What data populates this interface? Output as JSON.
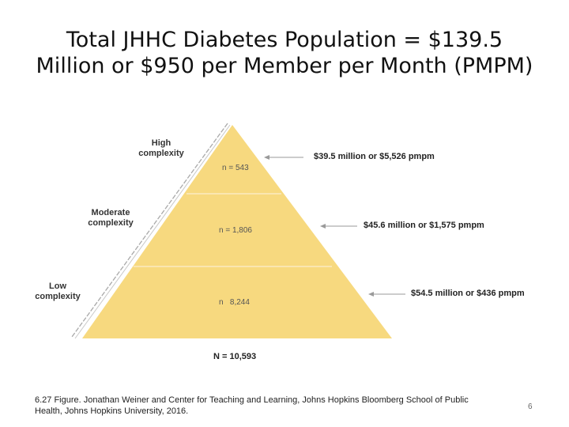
{
  "title": {
    "line1": "Total JHHC Diabetes Population = $139.5",
    "line2": "Million or $950 per Member per Month (PMPM)"
  },
  "tiers": [
    {
      "label_line1": "High",
      "label_line2": "complexity",
      "n": "n = 543",
      "cost": "$39.5 million or $5,526 pmpm"
    },
    {
      "label_line1": "Moderate",
      "label_line2": "complexity",
      "n": "n = 1,806",
      "cost": "$45.6 million or $1,575 pmpm"
    },
    {
      "label_line1": "Low",
      "label_line2": "complexity",
      "n": "n   8,244",
      "cost": "$54.5 million or $436 pmpm"
    }
  ],
  "total": "N = 10,593",
  "caption": "6.27 Figure. Jonathan Weiner and Center for Teaching and Learning, Johns Hopkins Bloomberg School of Public Health, Johns Hopkins University, 2016.",
  "page_number": "6",
  "colors": {
    "pyramid": "#f7d97f",
    "divider": "#fbebc0",
    "axis": "#a9a9a9",
    "arrow": "#9a9a9a"
  }
}
